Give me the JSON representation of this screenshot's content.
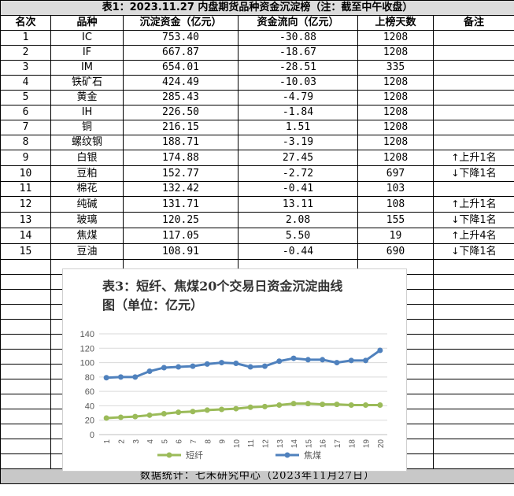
{
  "title": "表1：2023.11.27 内盘期货品种资金沉淀榜（注：截至中午收盘）",
  "headers": [
    "名次",
    "品种",
    "沉淀资金（亿元）",
    "资金流向（亿元）",
    "上榜天数",
    "备注"
  ],
  "rows": [
    {
      "rank": "1",
      "name": "IC",
      "fund": "753.40",
      "flow": "-30.88",
      "days": "1208",
      "note": ""
    },
    {
      "rank": "2",
      "name": "IF",
      "fund": "667.87",
      "flow": "-18.67",
      "days": "1208",
      "note": ""
    },
    {
      "rank": "3",
      "name": "IM",
      "fund": "654.01",
      "flow": "-28.51",
      "days": "335",
      "note": ""
    },
    {
      "rank": "4",
      "name": "铁矿石",
      "fund": "424.49",
      "flow": "-10.03",
      "days": "1208",
      "note": ""
    },
    {
      "rank": "5",
      "name": "黄金",
      "fund": "285.43",
      "flow": "-4.79",
      "days": "1208",
      "note": ""
    },
    {
      "rank": "6",
      "name": "IH",
      "fund": "226.50",
      "flow": "-1.84",
      "days": "1208",
      "note": ""
    },
    {
      "rank": "7",
      "name": "铜",
      "fund": "216.15",
      "flow": "1.51",
      "days": "1208",
      "note": ""
    },
    {
      "rank": "8",
      "name": "螺纹钢",
      "fund": "188.71",
      "flow": "-3.19",
      "days": "1208",
      "note": ""
    },
    {
      "rank": "9",
      "name": "白银",
      "fund": "174.88",
      "flow": "27.45",
      "days": "1208",
      "note": "上升1名",
      "dir": "up"
    },
    {
      "rank": "10",
      "name": "豆粕",
      "fund": "152.77",
      "flow": "-2.72",
      "days": "697",
      "note": "下降1名",
      "dir": "down"
    },
    {
      "rank": "11",
      "name": "棉花",
      "fund": "132.42",
      "flow": "-0.41",
      "days": "103",
      "note": ""
    },
    {
      "rank": "12",
      "name": "纯碱",
      "fund": "131.71",
      "flow": "13.11",
      "days": "108",
      "note": "上升1名",
      "dir": "up"
    },
    {
      "rank": "13",
      "name": "玻璃",
      "fund": "120.25",
      "flow": "2.08",
      "days": "155",
      "note": "下降1名",
      "dir": "down"
    },
    {
      "rank": "14",
      "name": "焦煤",
      "fund": "117.05",
      "flow": "5.50",
      "days": "19",
      "note": "上升4名",
      "dir": "up"
    },
    {
      "rank": "15",
      "name": "豆油",
      "fund": "108.91",
      "flow": "-0.44",
      "days": "690",
      "note": "下降1名",
      "dir": "down"
    }
  ],
  "arrows": {
    "up": "↑",
    "down": "↓"
  },
  "footer": "数据统计：七禾研究中心（2023年11月27日）",
  "chart_data": {
    "type": "line",
    "title": "表3：短纤、焦煤20个交易日资金沉淀曲线图（单位：亿元）",
    "x": [
      1,
      2,
      3,
      4,
      5,
      6,
      7,
      8,
      9,
      10,
      11,
      12,
      13,
      14,
      15,
      16,
      17,
      18,
      19,
      20
    ],
    "ylim": [
      0,
      140
    ],
    "yticks": [
      0,
      20,
      40,
      60,
      80,
      100,
      120,
      140
    ],
    "grid": true,
    "legend_position": "bottom",
    "series": [
      {
        "name": "短纤",
        "color": "#9bbb59",
        "values": [
          23,
          24,
          25,
          27,
          29,
          31,
          32,
          34,
          35,
          36,
          38,
          39,
          41,
          43,
          43,
          42,
          42,
          41,
          41,
          41
        ]
      },
      {
        "name": "焦煤",
        "color": "#4f81bd",
        "values": [
          79,
          80,
          80,
          88,
          93,
          94,
          95,
          98,
          100,
          99,
          94,
          95,
          102,
          106,
          104,
          104,
          100,
          103,
          103,
          117
        ]
      }
    ]
  }
}
